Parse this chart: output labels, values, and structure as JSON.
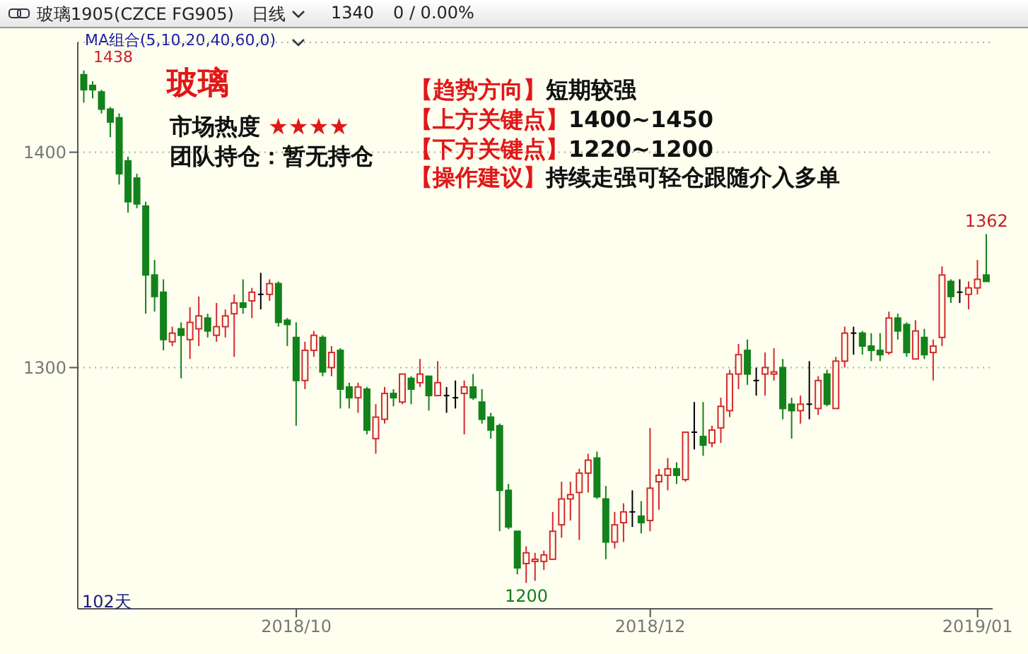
{
  "chart_data": {
    "type": "candlestick",
    "title": "玻璃1905(CZCE FG905)",
    "categories": [
      null,
      null,
      null,
      null,
      null,
      null,
      null,
      null,
      null,
      null,
      null,
      null,
      null,
      null,
      null,
      null,
      null,
      null,
      null,
      null,
      null,
      null,
      null,
      null,
      "2018/10",
      null,
      null,
      null,
      null,
      null,
      null,
      null,
      null,
      null,
      null,
      null,
      null,
      null,
      null,
      null,
      null,
      null,
      null,
      null,
      null,
      null,
      null,
      null,
      null,
      null,
      null,
      null,
      null,
      null,
      null,
      null,
      null,
      null,
      null,
      null,
      null,
      null,
      null,
      null,
      "2018/12",
      null,
      null,
      null,
      null,
      null,
      null,
      null,
      null,
      null,
      null,
      null,
      null,
      null,
      null,
      null,
      null,
      null,
      null,
      null,
      null,
      null,
      null,
      null,
      null,
      null,
      null,
      null,
      null,
      null,
      null,
      null,
      null,
      null,
      null,
      null,
      null,
      "2019/01",
      null
    ],
    "ohlc": [
      [
        1436,
        1438,
        1423,
        1429
      ],
      [
        1431,
        1433,
        1425,
        1429
      ],
      [
        1428,
        1429,
        1418,
        1420
      ],
      [
        1420,
        1421,
        1407,
        1414
      ],
      [
        1416,
        1418,
        1385,
        1390
      ],
      [
        1396,
        1398,
        1372,
        1377
      ],
      [
        1388,
        1390,
        1374,
        1376
      ],
      [
        1375,
        1377,
        1325,
        1343
      ],
      [
        1343,
        1350,
        1326,
        1333
      ],
      [
        1335,
        1341,
        1308,
        1313
      ],
      [
        1312,
        1319,
        1310,
        1316
      ],
      [
        1318,
        1321,
        1295,
        1315
      ],
      [
        1313,
        1328,
        1304,
        1321
      ],
      [
        1318,
        1333,
        1310,
        1324
      ],
      [
        1323,
        1325,
        1314,
        1317
      ],
      [
        1315,
        1330,
        1312,
        1319
      ],
      [
        1319,
        1327,
        1314,
        1324
      ],
      [
        1325,
        1334,
        1305,
        1330
      ],
      [
        1330,
        1341,
        1325,
        1328
      ],
      [
        1331,
        1337,
        1323,
        1335
      ],
      [
        1334,
        1344,
        1327,
        1334
      ],
      [
        1334,
        1341,
        1331,
        1339
      ],
      [
        1339,
        1340,
        1319,
        1321
      ],
      [
        1322,
        1323,
        1310,
        1320
      ],
      [
        1314,
        1321,
        1273,
        1294
      ],
      [
        1294,
        1312,
        1290,
        1308
      ],
      [
        1308,
        1317,
        1305,
        1315
      ],
      [
        1314,
        1315,
        1296,
        1298
      ],
      [
        1300,
        1310,
        1296,
        1307
      ],
      [
        1308,
        1309,
        1281,
        1290
      ],
      [
        1291,
        1293,
        1281,
        1286
      ],
      [
        1286,
        1293,
        1279,
        1291
      ],
      [
        1290,
        1291,
        1269,
        1271
      ],
      [
        1267,
        1283,
        1260,
        1277
      ],
      [
        1276,
        1291,
        1274,
        1288
      ],
      [
        1288,
        1290,
        1282,
        1286
      ],
      [
        1284,
        1297,
        1283,
        1297
      ],
      [
        1295,
        1296,
        1283,
        1290
      ],
      [
        1293,
        1304,
        1291,
        1297
      ],
      [
        1296,
        1296,
        1280,
        1287
      ],
      [
        1287,
        1303,
        1287,
        1293
      ],
      [
        1287,
        1291,
        1279,
        1287
      ],
      [
        1286,
        1294,
        1281,
        1286
      ],
      [
        1288,
        1294,
        1269,
        1291
      ],
      [
        1291,
        1297,
        1285,
        1286
      ],
      [
        1284,
        1290,
        1274,
        1276
      ],
      [
        1277,
        1279,
        1267,
        1271
      ],
      [
        1273,
        1274,
        1224,
        1243
      ],
      [
        1243,
        1246,
        1225,
        1226
      ],
      [
        1224,
        1224,
        1204,
        1207
      ],
      [
        1209,
        1217,
        1200,
        1214
      ],
      [
        1210,
        1214,
        1201,
        1211
      ],
      [
        1210,
        1215,
        1206,
        1213
      ],
      [
        1211,
        1233,
        1211,
        1224
      ],
      [
        1227,
        1247,
        1221,
        1239
      ],
      [
        1239,
        1247,
        1229,
        1241
      ],
      [
        1242,
        1253,
        1220,
        1251
      ],
      [
        1251,
        1260,
        1242,
        1257
      ],
      [
        1258,
        1261,
        1239,
        1240
      ],
      [
        1239,
        1245,
        1211,
        1219
      ],
      [
        1219,
        1233,
        1216,
        1227
      ],
      [
        1228,
        1237,
        1219,
        1233
      ],
      [
        1233,
        1243,
        1226,
        1233
      ],
      [
        1231,
        1238,
        1223,
        1228
      ],
      [
        1229,
        1272,
        1224,
        1244
      ],
      [
        1247,
        1253,
        1234,
        1250
      ],
      [
        1250,
        1258,
        1243,
        1253
      ],
      [
        1253,
        1256,
        1246,
        1250
      ],
      [
        1248,
        1270,
        1247,
        1270
      ],
      [
        1270,
        1284,
        1262,
        1270
      ],
      [
        1268,
        1284,
        1259,
        1264
      ],
      [
        1265,
        1273,
        1263,
        1271
      ],
      [
        1272,
        1286,
        1265,
        1282
      ],
      [
        1280,
        1299,
        1277,
        1297
      ],
      [
        1297,
        1311,
        1290,
        1306
      ],
      [
        1308,
        1313,
        1292,
        1297
      ],
      [
        1294,
        1300,
        1287,
        1294
      ],
      [
        1297,
        1307,
        1287,
        1300
      ],
      [
        1297,
        1309,
        1294,
        1298
      ],
      [
        1300,
        1304,
        1276,
        1281
      ],
      [
        1283,
        1286,
        1267,
        1280
      ],
      [
        1280,
        1287,
        1274,
        1283
      ],
      [
        1283,
        1303,
        1276,
        1283
      ],
      [
        1281,
        1296,
        1278,
        1294
      ],
      [
        1297,
        1299,
        1282,
        1283
      ],
      [
        1281,
        1305,
        1281,
        1303
      ],
      [
        1303,
        1319,
        1300,
        1316
      ],
      [
        1316,
        1319,
        1306,
        1316
      ],
      [
        1316,
        1317,
        1306,
        1310
      ],
      [
        1310,
        1316,
        1303,
        1308
      ],
      [
        1308,
        1316,
        1303,
        1306
      ],
      [
        1307,
        1326,
        1306,
        1323
      ],
      [
        1323,
        1325,
        1313,
        1317
      ],
      [
        1320,
        1321,
        1305,
        1307
      ],
      [
        1304,
        1322,
        1304,
        1317
      ],
      [
        1314,
        1318,
        1304,
        1306
      ],
      [
        1307,
        1313,
        1294,
        1310
      ],
      [
        1314,
        1347,
        1310,
        1343
      ],
      [
        1340,
        1341,
        1330,
        1333
      ],
      [
        1335,
        1341,
        1330,
        1335
      ],
      [
        1334,
        1340,
        1327,
        1337
      ],
      [
        1337,
        1350,
        1334,
        1341
      ],
      [
        1343,
        1362,
        1340,
        1340
      ]
    ],
    "colors": [
      "#13821b",
      "#13821b",
      "#13821b",
      "#13821b",
      "#13821b",
      "#13821b",
      "#13821b",
      "#13821b",
      "#13821b",
      "#13821b",
      "#d42a2a",
      "#13821b",
      "#d42a2a",
      "#d42a2a",
      "#13821b",
      "#d42a2a",
      "#d42a2a",
      "#d42a2a",
      "#13821b",
      "#d42a2a",
      "#000000",
      "#d42a2a",
      "#13821b",
      "#13821b",
      "#13821b",
      "#d42a2a",
      "#d42a2a",
      "#13821b",
      "#d42a2a",
      "#13821b",
      "#13821b",
      "#d42a2a",
      "#13821b",
      "#d42a2a",
      "#d42a2a",
      "#13821b",
      "#d42a2a",
      "#13821b",
      "#d42a2a",
      "#13821b",
      "#d42a2a",
      "#000000",
      "#000000",
      "#d42a2a",
      "#13821b",
      "#13821b",
      "#13821b",
      "#13821b",
      "#13821b",
      "#13821b",
      "#d42a2a",
      "#d42a2a",
      "#d42a2a",
      "#d42a2a",
      "#d42a2a",
      "#d42a2a",
      "#d42a2a",
      "#d42a2a",
      "#13821b",
      "#13821b",
      "#d42a2a",
      "#d42a2a",
      "#000000",
      "#13821b",
      "#d42a2a",
      "#d42a2a",
      "#d42a2a",
      "#13821b",
      "#d42a2a",
      "#000000",
      "#13821b",
      "#d42a2a",
      "#d42a2a",
      "#d42a2a",
      "#d42a2a",
      "#13821b",
      "#000000",
      "#d42a2a",
      "#d42a2a",
      "#13821b",
      "#13821b",
      "#d42a2a",
      "#000000",
      "#d42a2a",
      "#13821b",
      "#d42a2a",
      "#d42a2a",
      "#000000",
      "#13821b",
      "#13821b",
      "#13821b",
      "#d42a2a",
      "#13821b",
      "#13821b",
      "#d42a2a",
      "#13821b",
      "#d42a2a",
      "#d42a2a",
      "#13821b",
      "#000000",
      "#d42a2a",
      "#d42a2a",
      "#13821b"
    ],
    "ylim": [
      1188,
      1451
    ],
    "yticks": [
      1300,
      1400
    ],
    "grid": "y",
    "annotations": [
      "日线",
      "1340",
      "0 / 0.00%",
      "MA组合(5,10,20,40,60,0)",
      "玻璃",
      "市场热度 ★★★★",
      "团队持仓：暂无持仓",
      "【趋势方向】短期较强",
      "【上方关键点】1400~1450",
      "【下方关键点】1220~1200",
      "【操作建议】持续走强可轻仓跟随介入多单",
      "102天",
      "1438",
      {
        "text": "1200",
        "y": 1200
      },
      {
        "text": "1362",
        "y": 1362
      }
    ]
  }
}
